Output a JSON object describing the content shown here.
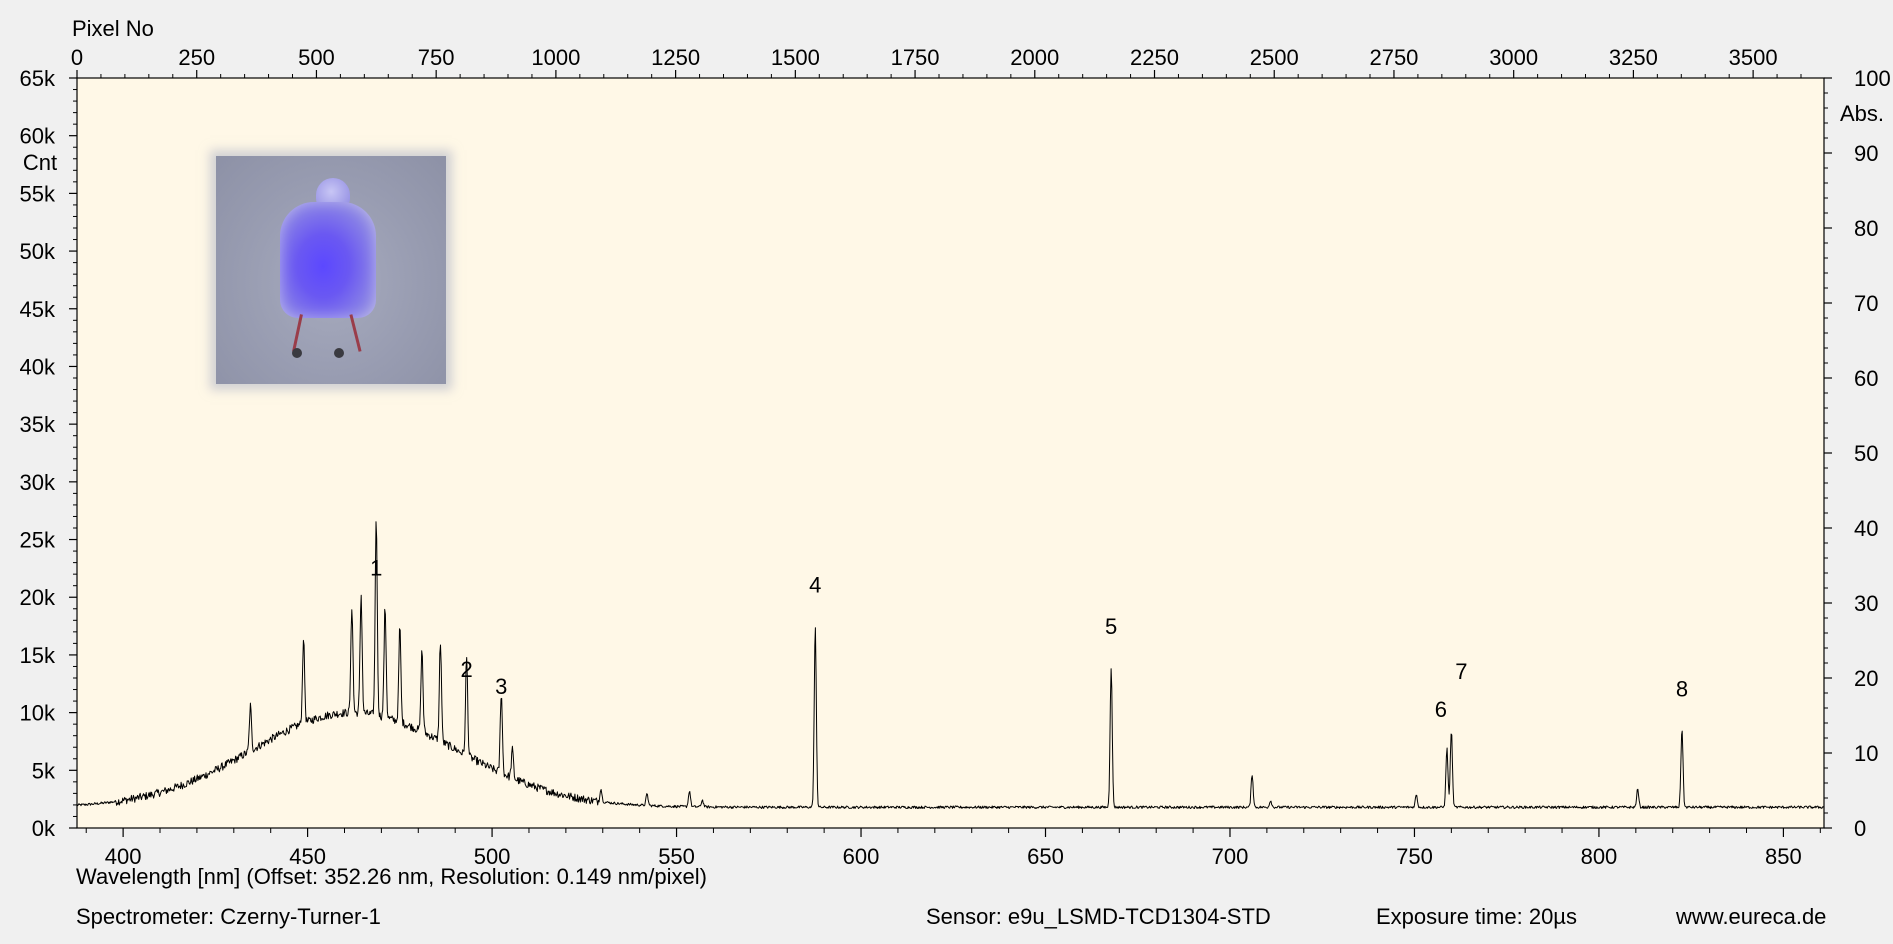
{
  "chart_data": {
    "type": "line",
    "top_axis_label": "Pixel No",
    "top_axis_range": [
      0,
      3648
    ],
    "top_ticks": [
      0,
      250,
      500,
      750,
      1000,
      1250,
      1500,
      1750,
      2000,
      2250,
      2500,
      2750,
      3000,
      3250,
      3500
    ],
    "left_axis_label": "Cnt",
    "left_axis_range": [
      0,
      65000
    ],
    "left_ticks": [
      "0k",
      "5k",
      "10k",
      "15k",
      "20k",
      "25k",
      "30k",
      "35k",
      "40k",
      "45k",
      "50k",
      "55k",
      "60k",
      "65k"
    ],
    "right_axis_label": "Abs.",
    "right_axis_range": [
      0,
      100
    ],
    "right_ticks": [
      0,
      10,
      20,
      30,
      40,
      50,
      60,
      70,
      80,
      90,
      100
    ],
    "xlabel": "Wavelength [nm]",
    "x_range": [
      387.5,
      861.0
    ],
    "x_ticks": [
      400,
      450,
      500,
      550,
      600,
      650,
      700,
      750,
      800,
      850
    ],
    "grid": false,
    "baseline": 1800,
    "continuum": {
      "center": 462,
      "sigma": 27,
      "amplitude": 8200
    },
    "peaks": [
      {
        "x": 468.6,
        "y": 19300,
        "label": "1"
      },
      {
        "x": 493.1,
        "y": 10500,
        "label": "2"
      },
      {
        "x": 502.5,
        "y": 9000,
        "label": "3"
      },
      {
        "x": 587.6,
        "y": 17800,
        "label": "4"
      },
      {
        "x": 667.8,
        "y": 14200,
        "label": "5"
      },
      {
        "x": 758.8,
        "y": 7000,
        "label": "6"
      },
      {
        "x": 760.0,
        "y": 8600,
        "label": "7"
      },
      {
        "x": 822.5,
        "y": 8800,
        "label": "8"
      },
      {
        "x": 434.5,
        "y": 5800
      },
      {
        "x": 448.9,
        "y": 9400
      },
      {
        "x": 462.0,
        "y": 11200
      },
      {
        "x": 464.5,
        "y": 12300
      },
      {
        "x": 471.0,
        "y": 11500
      },
      {
        "x": 475.0,
        "y": 10200
      },
      {
        "x": 481.0,
        "y": 9000
      },
      {
        "x": 486.0,
        "y": 10600
      },
      {
        "x": 505.5,
        "y": 4300
      },
      {
        "x": 529.5,
        "y": 2900
      },
      {
        "x": 542.0,
        "y": 2800
      },
      {
        "x": 553.5,
        "y": 3200
      },
      {
        "x": 557.0,
        "y": 2400
      },
      {
        "x": 706.0,
        "y": 4700
      },
      {
        "x": 711.0,
        "y": 2400
      },
      {
        "x": 750.5,
        "y": 2900
      },
      {
        "x": 810.5,
        "y": 3400
      }
    ]
  },
  "footer": {
    "wavelength_info": "Wavelength [nm]   (Offset: 352.26 nm, Resolution: 0.149 nm/pixel)",
    "spectrometer": "Spectrometer: Czerny-Turner-1",
    "sensor": "Sensor: e9u_LSMD-TCD1304-STD",
    "exposure": "Exposure time: 20µs",
    "website": "www.eureca.de"
  },
  "colors": {
    "plot_background": "#fff8e7",
    "page_background": "#f0f0f0",
    "trace": "#000000"
  }
}
